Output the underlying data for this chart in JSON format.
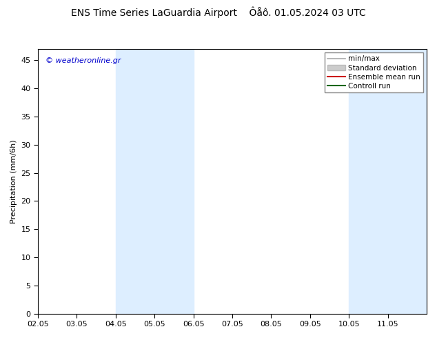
{
  "title": "ENS Time Series LaGuardia Airport",
  "title2": "Ôåô. 01.05.2024 03 UTC",
  "ylabel": "Precipitation (mm/6h)",
  "watermark": "© weatheronline.gr",
  "ylim": [
    0,
    47
  ],
  "yticks": [
    0,
    5,
    10,
    15,
    20,
    25,
    30,
    35,
    40,
    45
  ],
  "xlim_start": 0.0,
  "xlim_end": 10.0,
  "xtick_labels": [
    "02.05",
    "03.05",
    "04.05",
    "05.05",
    "06.05",
    "07.05",
    "08.05",
    "09.05",
    "10.05",
    "11.05"
  ],
  "xtick_positions": [
    0,
    1,
    2,
    3,
    4,
    5,
    6,
    7,
    8,
    9
  ],
  "shaded_bands": [
    {
      "xmin": 2.0,
      "xmax": 3.0,
      "color": "#ddeeff",
      "alpha": 1.0
    },
    {
      "xmin": 3.0,
      "xmax": 4.0,
      "color": "#ddeeff",
      "alpha": 1.0
    },
    {
      "xmin": 8.0,
      "xmax": 9.0,
      "color": "#ddeeff",
      "alpha": 1.0
    },
    {
      "xmin": 9.0,
      "xmax": 10.0,
      "color": "#ddeeff",
      "alpha": 1.0
    }
  ],
  "legend_items": [
    {
      "label": "min/max",
      "color": "#aaaaaa",
      "lw": 1.2,
      "ls": "-"
    },
    {
      "label": "Standard deviation",
      "color": "#cccccc",
      "lw": 6,
      "ls": "-"
    },
    {
      "label": "Ensemble mean run",
      "color": "#cc0000",
      "lw": 1.5,
      "ls": "-"
    },
    {
      "label": "Controll run",
      "color": "#006600",
      "lw": 1.5,
      "ls": "-"
    }
  ],
  "background_color": "#ffffff",
  "plot_bg_color": "#ffffff",
  "border_color": "#000000",
  "watermark_color": "#0000cc",
  "title_fontsize": 10,
  "axis_fontsize": 8,
  "tick_fontsize": 8,
  "legend_fontsize": 7.5
}
